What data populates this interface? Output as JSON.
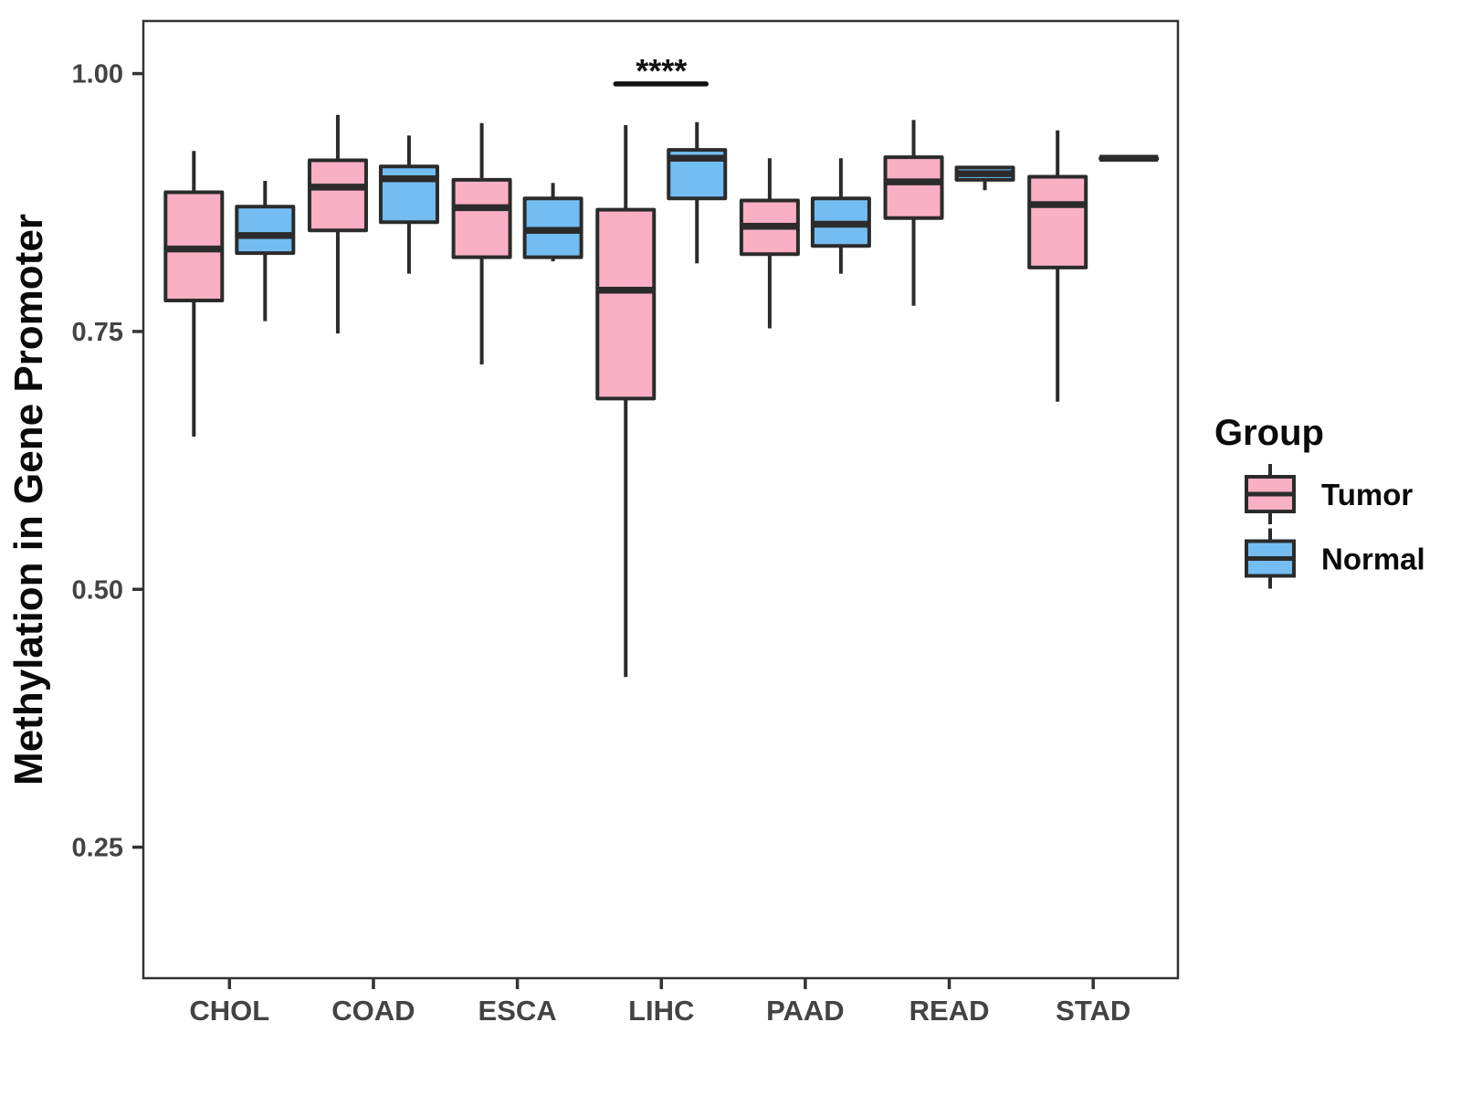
{
  "chart_data": {
    "type": "boxplot",
    "title": "",
    "xlabel": "",
    "ylabel": "Methylation in Gene Promoter",
    "categories": [
      "CHOL",
      "COAD",
      "ESCA",
      "LIHC",
      "PAAD",
      "READ",
      "STAD"
    ],
    "yticks": [
      {
        "value": 1.0,
        "label": "1.00"
      },
      {
        "value": 0.75,
        "label": "0.75"
      },
      {
        "value": 0.5,
        "label": "0.50"
      },
      {
        "value": 0.25,
        "label": "0.25"
      }
    ],
    "ylim": [
      0.123,
      1.051
    ],
    "grid": "off",
    "legend": {
      "title": "Group",
      "position": "right",
      "entries": [
        {
          "label": "Tumor",
          "color": "#F9AFC4"
        },
        {
          "label": "Normal",
          "color": "#74BDF2"
        }
      ]
    },
    "style": {
      "line_color": "#2B2B2B",
      "panel_border_color": "#333333",
      "tick_label_color": "#434343",
      "title_color": "#0A0A0A",
      "tumor_fill": "#F9AFC4",
      "normal_fill": "#74BDF2"
    },
    "series": [
      {
        "name": "Tumor",
        "color": "#F9AFC4",
        "boxes": [
          {
            "category": "CHOL",
            "whislo": 0.648,
            "q1": 0.78,
            "med": 0.83,
            "q3": 0.885,
            "whishi": 0.925
          },
          {
            "category": "COAD",
            "whislo": 0.748,
            "q1": 0.848,
            "med": 0.89,
            "q3": 0.916,
            "whishi": 0.96
          },
          {
            "category": "ESCA",
            "whislo": 0.718,
            "q1": 0.822,
            "med": 0.87,
            "q3": 0.897,
            "whishi": 0.952
          },
          {
            "category": "LIHC",
            "whislo": 0.415,
            "q1": 0.685,
            "med": 0.79,
            "q3": 0.868,
            "whishi": 0.95
          },
          {
            "category": "PAAD",
            "whislo": 0.753,
            "q1": 0.825,
            "med": 0.852,
            "q3": 0.877,
            "whishi": 0.918
          },
          {
            "category": "READ",
            "whislo": 0.775,
            "q1": 0.86,
            "med": 0.895,
            "q3": 0.919,
            "whishi": 0.955
          },
          {
            "category": "STAD",
            "whislo": 0.682,
            "q1": 0.812,
            "med": 0.873,
            "q3": 0.9,
            "whishi": 0.945
          }
        ]
      },
      {
        "name": "Normal",
        "color": "#74BDF2",
        "boxes": [
          {
            "category": "CHOL",
            "whislo": 0.76,
            "q1": 0.826,
            "med": 0.843,
            "q3": 0.871,
            "whishi": 0.896
          },
          {
            "category": "COAD",
            "whislo": 0.806,
            "q1": 0.856,
            "med": 0.898,
            "q3": 0.91,
            "whishi": 0.94
          },
          {
            "category": "ESCA",
            "whislo": 0.818,
            "q1": 0.822,
            "med": 0.848,
            "q3": 0.879,
            "whishi": 0.894
          },
          {
            "category": "LIHC",
            "whislo": 0.816,
            "q1": 0.879,
            "med": 0.918,
            "q3": 0.926,
            "whishi": 0.953
          },
          {
            "category": "PAAD",
            "whislo": 0.806,
            "q1": 0.833,
            "med": 0.854,
            "q3": 0.879,
            "whishi": 0.918
          },
          {
            "category": "READ",
            "whislo": 0.887,
            "q1": 0.897,
            "med": 0.903,
            "q3": 0.909,
            "whishi": 0.91
          },
          {
            "category": "STAD",
            "whislo": 0.918,
            "q1": 0.918,
            "med": 0.918,
            "q3": 0.918,
            "whishi": 0.918
          }
        ]
      }
    ],
    "annotations": [
      {
        "type": "significance-bracket",
        "label": "****",
        "category": "LIHC",
        "y_value": 0.99
      }
    ]
  }
}
